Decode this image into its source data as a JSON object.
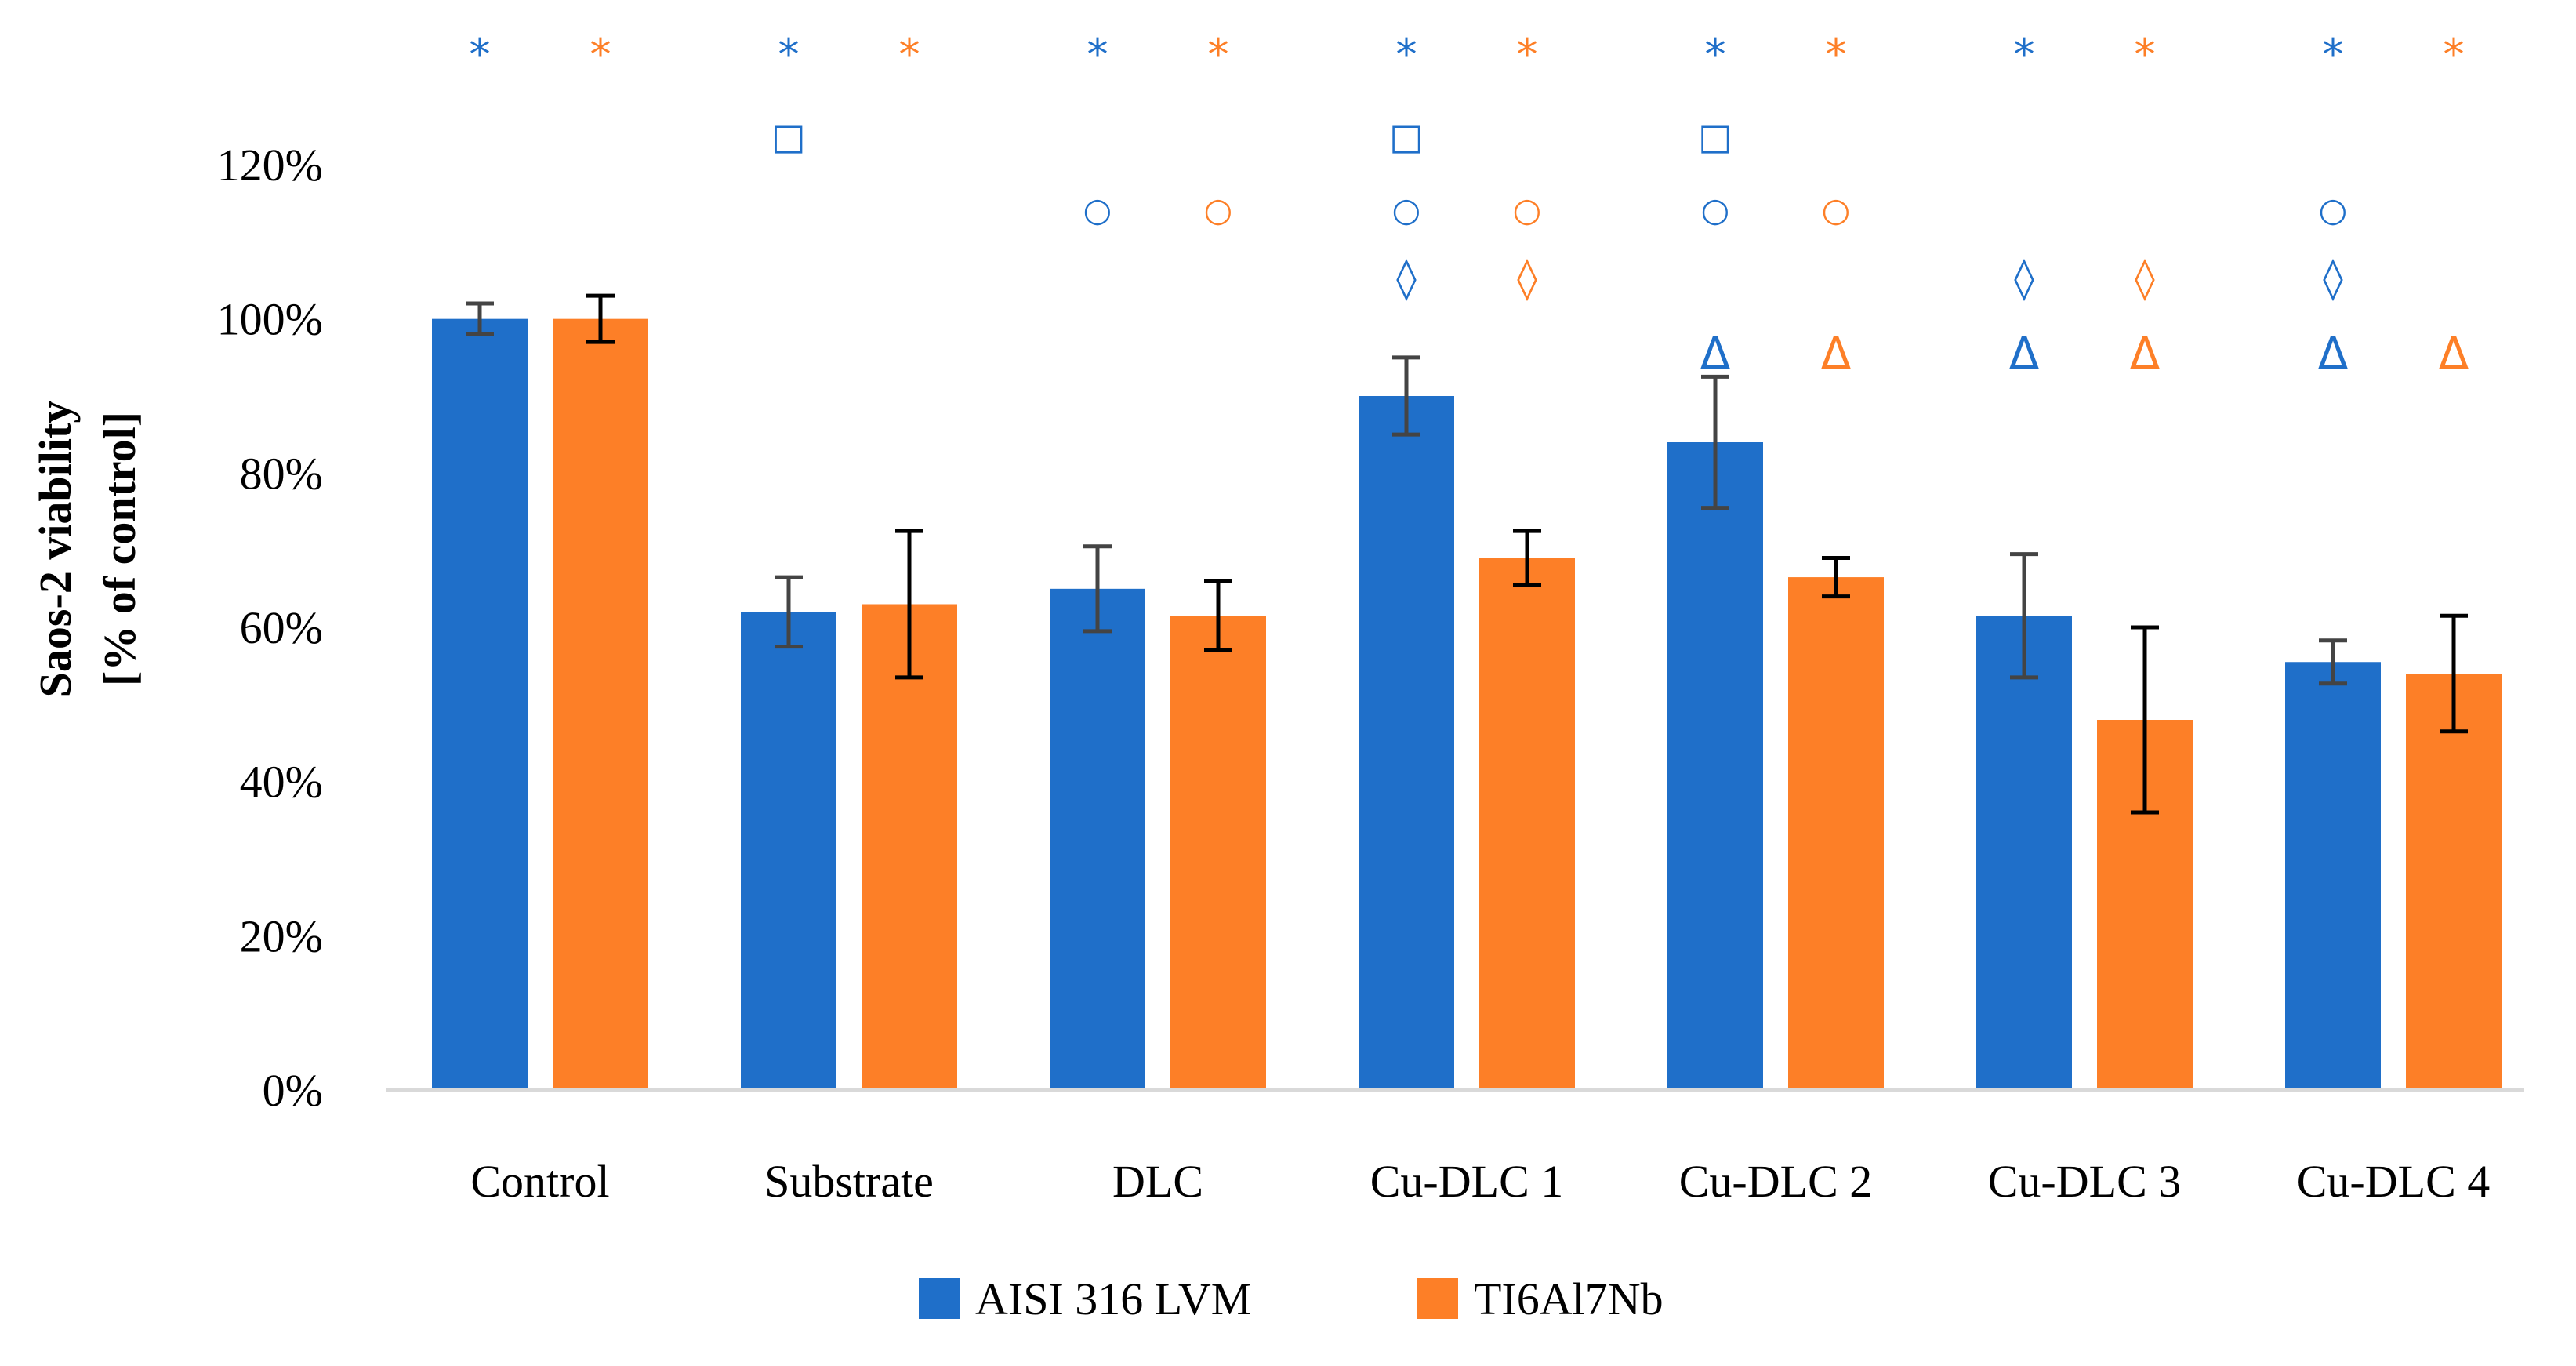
{
  "chart_data": {
    "type": "bar",
    "title": "",
    "ylabel_lines": [
      "Saos-2 viability",
      "[% of control]"
    ],
    "xlabel": "",
    "ylim": [
      0,
      120
    ],
    "yticks": [
      0,
      20,
      40,
      60,
      80,
      100,
      120
    ],
    "ytick_labels": [
      "0%",
      "20%",
      "40%",
      "60%",
      "80%",
      "100%",
      "120%"
    ],
    "grid": false,
    "legend_position": "bottom-center",
    "categories": [
      "Control",
      "Substrate",
      "DLC",
      "Cu-DLC 1",
      "Cu-DLC 2",
      "Cu-DLC 3",
      "Cu-DLC 4"
    ],
    "series": [
      {
        "name": "AISI 316 LVM",
        "color": "#1f6fc9",
        "values": [
          100,
          62,
          65,
          90,
          84,
          61.5,
          55.5
        ],
        "errors": [
          2,
          4.5,
          5.5,
          5,
          8.5,
          8,
          2.8
        ]
      },
      {
        "name": "TI6Al7Nb",
        "color": "#fd7f27",
        "values": [
          100,
          63,
          61.5,
          69,
          66.5,
          48,
          54
        ],
        "errors": [
          3,
          9.5,
          4.5,
          3.5,
          2.5,
          12,
          7.5
        ]
      }
    ],
    "significance_markers": [
      {
        "category": "Control",
        "series": "AISI 316 LVM",
        "symbols": [
          "*"
        ]
      },
      {
        "category": "Control",
        "series": "TI6Al7Nb",
        "symbols": [
          "*"
        ]
      },
      {
        "category": "Substrate",
        "series": "AISI 316 LVM",
        "symbols": [
          "*",
          "□"
        ]
      },
      {
        "category": "Substrate",
        "series": "TI6Al7Nb",
        "symbols": [
          "*"
        ]
      },
      {
        "category": "DLC",
        "series": "AISI 316 LVM",
        "symbols": [
          "*",
          "○"
        ]
      },
      {
        "category": "DLC",
        "series": "TI6Al7Nb",
        "symbols": [
          "*",
          "○"
        ]
      },
      {
        "category": "Cu-DLC 1",
        "series": "AISI 316 LVM",
        "symbols": [
          "*",
          "□",
          "○",
          "◊"
        ]
      },
      {
        "category": "Cu-DLC 1",
        "series": "TI6Al7Nb",
        "symbols": [
          "*",
          "○",
          "◊"
        ]
      },
      {
        "category": "Cu-DLC 2",
        "series": "AISI 316 LVM",
        "symbols": [
          "*",
          "□",
          "○",
          "Δ"
        ]
      },
      {
        "category": "Cu-DLC 2",
        "series": "TI6Al7Nb",
        "symbols": [
          "*",
          "○",
          "Δ"
        ]
      },
      {
        "category": "Cu-DLC 3",
        "series": "AISI 316 LVM",
        "symbols": [
          "*",
          "◊",
          "Δ"
        ]
      },
      {
        "category": "Cu-DLC 3",
        "series": "TI6Al7Nb",
        "symbols": [
          "*",
          "◊",
          "Δ"
        ]
      },
      {
        "category": "Cu-DLC 4",
        "series": "AISI 316 LVM",
        "symbols": [
          "*",
          "○",
          "◊",
          "Δ"
        ]
      },
      {
        "category": "Cu-DLC 4",
        "series": "TI6Al7Nb",
        "symbols": [
          "*",
          "Δ"
        ]
      }
    ]
  }
}
